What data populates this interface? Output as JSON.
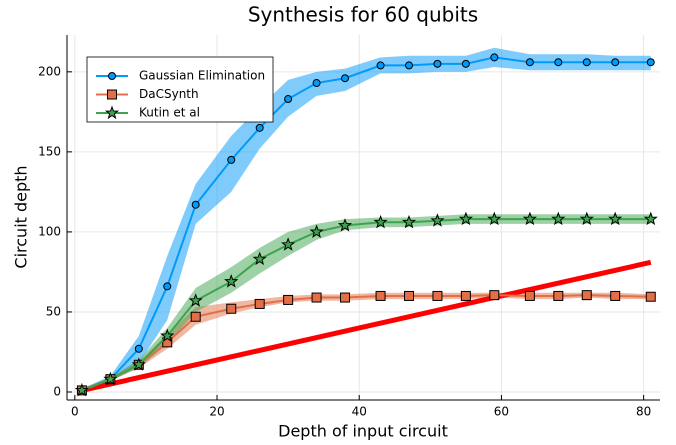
{
  "chart_data": {
    "type": "line",
    "title": "Synthesis for 60 qubits",
    "xlabel": "Depth of input circuit",
    "ylabel": "Circuit depth",
    "x": [
      1,
      5,
      9,
      13,
      17,
      22,
      26,
      30,
      34,
      38,
      43,
      47,
      51,
      55,
      59,
      64,
      68,
      72,
      76,
      81
    ],
    "series": [
      {
        "name": "Gaussian Elimination",
        "color": "#009af9",
        "marker": "circle",
        "values": [
          1,
          8,
          27,
          66,
          117,
          145,
          165,
          183,
          193,
          196,
          204,
          204,
          205,
          205,
          209,
          206,
          206,
          206,
          206,
          206
        ],
        "lower": [
          0,
          6,
          18,
          45,
          105,
          125,
          152,
          172,
          185,
          188,
          199,
          199,
          200,
          200,
          203,
          201,
          201,
          201,
          201,
          201
        ],
        "upper": [
          2,
          10,
          35,
          85,
          130,
          160,
          178,
          195,
          200,
          202,
          209,
          210,
          210,
          210,
          215,
          211,
          211,
          211,
          210,
          210
        ]
      },
      {
        "name": "DaCSynth",
        "color": "#e26f46",
        "marker": "square",
        "values": [
          1,
          8,
          17,
          31,
          47,
          52,
          55,
          57.5,
          59,
          59,
          60,
          60,
          60,
          60,
          60.5,
          60,
          60,
          60.5,
          60,
          59.5
        ],
        "lower": [
          0,
          7,
          15,
          27,
          42,
          49,
          53,
          56,
          57,
          57,
          58,
          58,
          58,
          58,
          59,
          58,
          58,
          59,
          58,
          58
        ],
        "upper": [
          2,
          9,
          19,
          36,
          53,
          56,
          58,
          60,
          61,
          61,
          62,
          62,
          62,
          62,
          62,
          62,
          62,
          62,
          62,
          61
        ]
      },
      {
        "name": "Kutin et al",
        "color": "#3da44d",
        "marker": "star",
        "values": [
          1,
          8,
          17,
          35,
          57,
          69,
          83,
          92,
          100,
          104,
          106,
          106,
          107,
          108,
          108,
          108,
          108,
          108,
          108,
          108
        ],
        "lower": [
          0,
          7,
          15,
          30,
          50,
          62,
          74,
          85,
          95,
          101,
          103,
          103,
          104,
          105,
          105,
          105,
          105,
          105,
          105,
          105
        ],
        "upper": [
          2,
          9,
          20,
          40,
          65,
          78,
          90,
          100,
          105,
          108,
          109,
          109,
          110,
          111,
          111,
          111,
          111,
          111,
          111,
          111
        ]
      }
    ],
    "reference": {
      "color": "#ff0000",
      "x": [
        1,
        81
      ],
      "values": [
        1,
        81
      ]
    },
    "xlim": [
      -1.1,
      82.3
    ],
    "ylim": [
      -5,
      223
    ],
    "xticks": [
      0,
      20,
      40,
      60,
      80
    ],
    "yticks": [
      0,
      50,
      100,
      150,
      200
    ],
    "grid": true,
    "legend": "upper left"
  }
}
